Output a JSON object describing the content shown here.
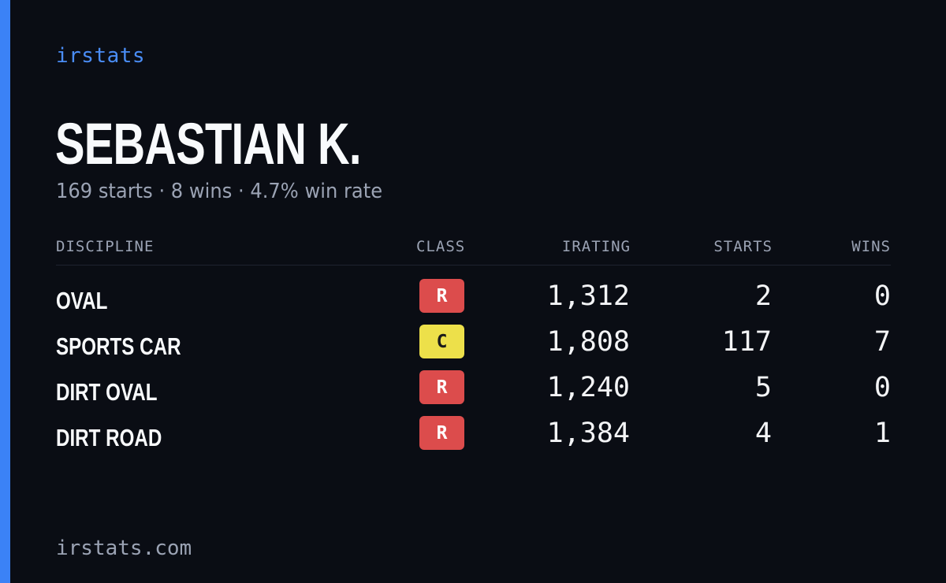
{
  "brand": "irstats",
  "driver": {
    "name": "SEBASTIAN K.",
    "summary": "169 starts · 8 wins · 4.7% win rate"
  },
  "table": {
    "headers": {
      "discipline": "DISCIPLINE",
      "class": "CLASS",
      "irating": "IRATING",
      "starts": "STARTS",
      "wins": "WINS"
    },
    "rows": [
      {
        "discipline": "OVAL",
        "class": "R",
        "class_color": "#dc4c4c",
        "class_text_color": "#ffffff",
        "irating": "1,312",
        "starts": "2",
        "wins": "0"
      },
      {
        "discipline": "SPORTS CAR",
        "class": "C",
        "class_color": "#ede04a",
        "class_text_color": "#1a1a1a",
        "irating": "1,808",
        "starts": "117",
        "wins": "7"
      },
      {
        "discipline": "DIRT OVAL",
        "class": "R",
        "class_color": "#dc4c4c",
        "class_text_color": "#ffffff",
        "irating": "1,240",
        "starts": "5",
        "wins": "0"
      },
      {
        "discipline": "DIRT ROAD",
        "class": "R",
        "class_color": "#dc4c4c",
        "class_text_color": "#ffffff",
        "irating": "1,384",
        "starts": "4",
        "wins": "1"
      }
    ]
  },
  "footer": "irstats.com",
  "colors": {
    "background": "#0a0d14",
    "accent": "#3b82f6"
  }
}
